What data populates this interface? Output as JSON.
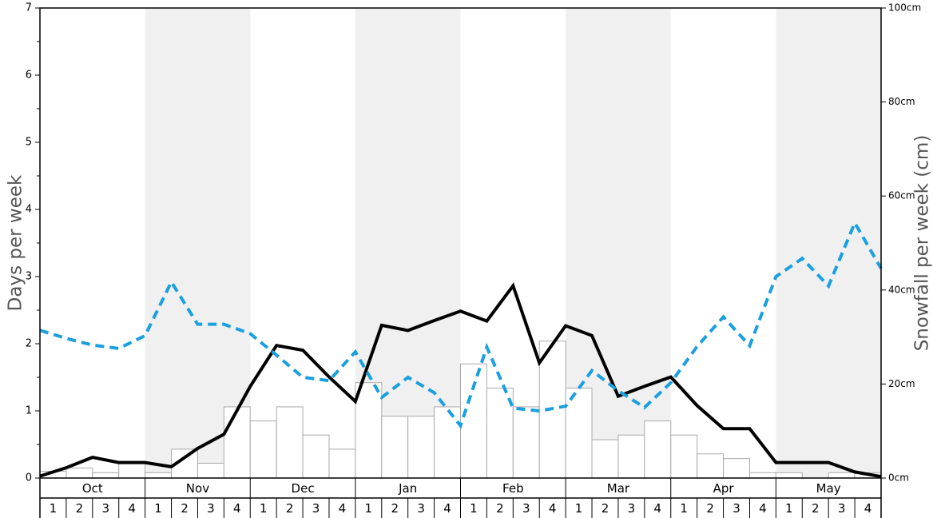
{
  "chart_data": {
    "type": "bar",
    "ylabel": "Days per week",
    "y2label": "Snowfall per week (cm)",
    "ylim": [
      0,
      7
    ],
    "y2lim": [
      0,
      100
    ],
    "yticks": [
      "0",
      "1",
      "2",
      "3",
      "4",
      "5",
      "6",
      "7"
    ],
    "y2ticks": [
      "0cm",
      "20cm",
      "40cm",
      "60cm",
      "80cm",
      "100cm"
    ],
    "y2tick_values": [
      0,
      20,
      40,
      60,
      80,
      100
    ],
    "months": [
      "Oct",
      "Nov",
      "Dec",
      "Jan",
      "Feb",
      "Mar",
      "Apr",
      "May"
    ],
    "week_labels": [
      "1",
      "2",
      "3",
      "4"
    ],
    "shaded_months": [
      "Nov",
      "Jan",
      "Mar",
      "May"
    ],
    "colors": {
      "bars_fill": "#ffffff",
      "bars_stroke": "#aaaaaa",
      "snowfall_line": "#000000",
      "days_line": "#1a9fe0",
      "shade": "#f0f0f0"
    },
    "series": [
      {
        "type": "bar",
        "axis": "left",
        "values": [
          0.1,
          0.15,
          0.08,
          0.25,
          0.08,
          0.43,
          0.22,
          1.06,
          0.85,
          1.06,
          0.64,
          0.43,
          1.42,
          0.92,
          0.92,
          1.06,
          1.7,
          1.34,
          1.06,
          2.04,
          1.34,
          0.57,
          0.64,
          0.85,
          0.64,
          0.36,
          0.29,
          0.08,
          0.08,
          0.0,
          0.08,
          0.08
        ]
      },
      {
        "type": "line",
        "axis": "right",
        "values": [
          0.4,
          2.2,
          4.4,
          3.3,
          3.3,
          2.4,
          6.3,
          9.3,
          19.5,
          28.2,
          27.2,
          21.5,
          16.3,
          32.5,
          31.4,
          33.5,
          35.5,
          33.4,
          40.9,
          24.5,
          32.4,
          30.3,
          17.4,
          19.5,
          21.5,
          15.4,
          10.5,
          10.5,
          3.3,
          3.3,
          3.3,
          1.3,
          0.3
        ]
      },
      {
        "type": "line",
        "axis": "left",
        "style": "dashed",
        "values": [
          2.2,
          2.08,
          1.98,
          1.93,
          2.12,
          2.92,
          2.29,
          2.29,
          2.15,
          1.83,
          1.5,
          1.45,
          1.88,
          1.2,
          1.5,
          1.27,
          0.78,
          1.95,
          1.04,
          1.0,
          1.07,
          1.6,
          1.3,
          1.05,
          1.42,
          1.96,
          2.4,
          1.97,
          3.0,
          3.27,
          2.86,
          3.8,
          3.12
        ]
      }
    ]
  }
}
